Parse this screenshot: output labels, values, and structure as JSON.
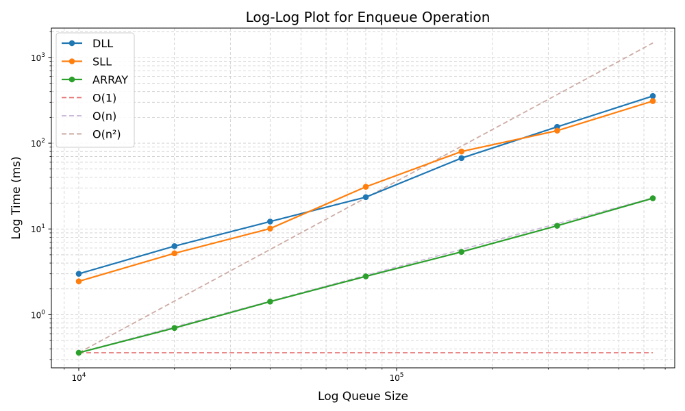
{
  "chart_data": {
    "type": "line",
    "title": "Log-Log Plot for Enqueue Operation",
    "xlabel": "Log Queue Size",
    "ylabel": "Log Time (ms)",
    "xscale": "log",
    "yscale": "log",
    "xlim": [
      8200,
      750000
    ],
    "ylim": [
      0.24,
      2200
    ],
    "grid": true,
    "legend_position": "top-left",
    "x_ticks": [
      {
        "value": 10000,
        "base": "10",
        "exp": "4"
      },
      {
        "value": 100000,
        "base": "10",
        "exp": "5"
      }
    ],
    "y_ticks": [
      {
        "value": 1,
        "base": "10",
        "exp": "0"
      },
      {
        "value": 10,
        "base": "10",
        "exp": "1"
      },
      {
        "value": 100,
        "base": "10",
        "exp": "2"
      },
      {
        "value": 1000,
        "base": "10",
        "exp": "3"
      }
    ],
    "x": [
      10000,
      20000,
      40000,
      80000,
      160000,
      320000,
      640000
    ],
    "series": [
      {
        "name": "DLL",
        "style": "solid-marker",
        "color": "#1f77b4",
        "values": [
          3.0,
          6.3,
          12.2,
          23.5,
          67,
          155,
          355
        ]
      },
      {
        "name": "SLL",
        "style": "solid-marker",
        "color": "#ff7f0e",
        "values": [
          2.45,
          5.2,
          10.1,
          31,
          80,
          140,
          310
        ]
      },
      {
        "name": "ARRAY",
        "style": "solid-marker",
        "color": "#2ca02c",
        "values": [
          0.36,
          0.7,
          1.42,
          2.8,
          5.4,
          10.9,
          22.8
        ]
      },
      {
        "name": "O(1)",
        "style": "dashed",
        "color": "#e57373",
        "values": [
          0.36,
          0.36,
          0.36,
          0.36,
          0.36,
          0.36,
          0.36
        ]
      },
      {
        "name": "O(n)",
        "style": "dashed",
        "color": "#c5b0d5",
        "values": [
          0.36,
          0.72,
          1.44,
          2.88,
          5.76,
          11.52,
          23.04
        ]
      },
      {
        "name": "O(n²)",
        "style": "dashed",
        "color": "#c49c94",
        "values": [
          0.36,
          1.44,
          5.76,
          23.04,
          92.16,
          368.6,
          1474.6
        ]
      }
    ]
  }
}
